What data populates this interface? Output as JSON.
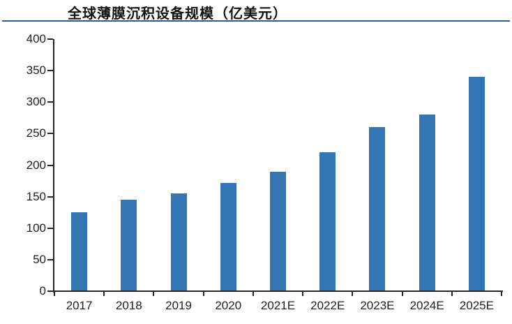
{
  "title": "全球薄膜沉积设备规模（亿美元）",
  "accent_colors": {
    "bar": "#3476b4",
    "title_rule": "#2e5b9a",
    "axis": "#262626",
    "text": "#1f1f1f"
  },
  "chart_data": {
    "type": "bar",
    "title": "全球薄膜沉积设备规模（亿美元）",
    "categories": [
      "2017",
      "2018",
      "2019",
      "2020",
      "2021E",
      "2022E",
      "2023E",
      "2024E",
      "2025E"
    ],
    "values": [
      125,
      145,
      155,
      172,
      190,
      220,
      260,
      280,
      340
    ],
    "xlabel": "",
    "ylabel": "",
    "ylim": [
      0,
      400
    ],
    "ytick_step": 50,
    "grid": "off",
    "legend": "none",
    "bar_color": "#3476b4"
  }
}
